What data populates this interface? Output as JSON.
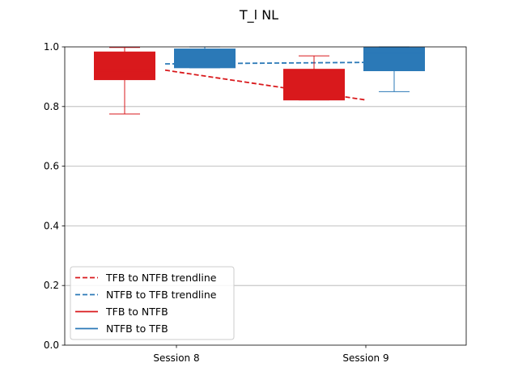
{
  "chart_data": {
    "type": "box",
    "title": "T_l NL",
    "xlabel": "",
    "ylabel": "",
    "categories": [
      "Session 8",
      "Session 9"
    ],
    "ylim": [
      0,
      1.0
    ],
    "yticks": [
      0.0,
      0.2,
      0.4,
      0.6,
      0.8,
      1.0
    ],
    "ytick_labels": [
      "0.0",
      "0.2",
      "0.4",
      "0.6",
      "0.8",
      "1.0"
    ],
    "grid": "y",
    "legend_position": "lower-left",
    "series": [
      {
        "name": "TFB to NTFB",
        "color": "#d9191c",
        "boxes": [
          {
            "category": "Session 8",
            "whisker_low": 0.775,
            "q1": 0.89,
            "median": 0.92,
            "q3": 0.983,
            "whisker_high": 0.998
          },
          {
            "category": "Session 9",
            "whisker_low": 0.822,
            "q1": 0.822,
            "median": 0.83,
            "q3": 0.925,
            "whisker_high": 0.97
          }
        ]
      },
      {
        "name": "NTFB to TFB",
        "color": "#2b79b7",
        "boxes": [
          {
            "category": "Session 8",
            "whisker_low": 0.93,
            "q1": 0.93,
            "median": 0.96,
            "q3": 0.993,
            "whisker_high": 1.0
          },
          {
            "category": "Session 9",
            "whisker_low": 0.85,
            "q1": 0.92,
            "median": 0.98,
            "q3": 0.998,
            "whisker_high": 1.0
          }
        ]
      }
    ],
    "trendlines": [
      {
        "name": "TFB to NTFB trendline",
        "color": "#d9191c",
        "style": "dashed",
        "y": [
          0.922,
          0.822
        ]
      },
      {
        "name": "NTFB to TFB trendline",
        "color": "#2b79b7",
        "style": "dashed",
        "y": [
          0.943,
          0.948
        ]
      }
    ],
    "legend": [
      {
        "label": "TFB to NTFB trendline",
        "color": "#d9191c",
        "style": "dashed"
      },
      {
        "label": "NTFB to TFB trendline",
        "color": "#2b79b7",
        "style": "dashed"
      },
      {
        "label": "TFB to NTFB",
        "color": "#d9191c",
        "style": "solid"
      },
      {
        "label": "NTFB to TFB",
        "color": "#2b79b7",
        "style": "solid"
      }
    ]
  }
}
